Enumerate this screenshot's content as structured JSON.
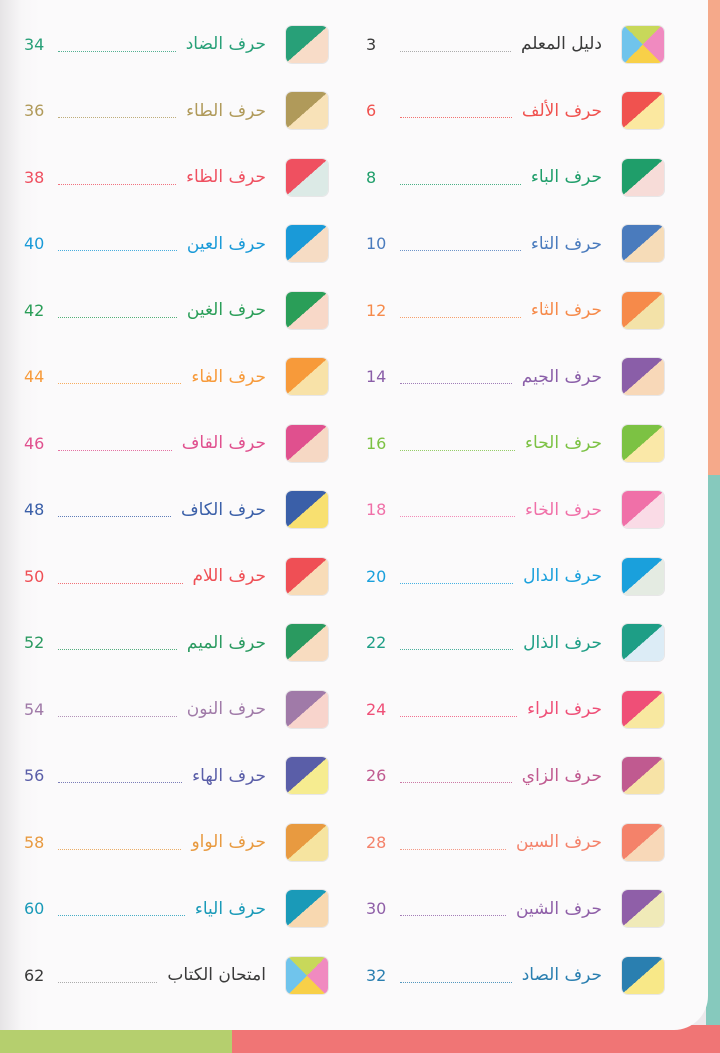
{
  "right_column": [
    {
      "label": "دليل المعلم",
      "page": "3",
      "color": "#3a3a3a",
      "icon": "quad",
      "light": ""
    },
    {
      "label": "حرف الألف",
      "page": "6",
      "color": "#f0524f",
      "light": "#fbe8a0"
    },
    {
      "label": "حرف الباء",
      "page": "8",
      "color": "#1f9e6a",
      "light": "#f7dcd8"
    },
    {
      "label": "حرف التاء",
      "page": "10",
      "color": "#4a7bbd",
      "light": "#f6dcb8"
    },
    {
      "label": "حرف الثاء",
      "page": "12",
      "color": "#f68a4a",
      "light": "#f3e2a8"
    },
    {
      "label": "حرف الجيم",
      "page": "14",
      "color": "#8a5ea8",
      "light": "#f8d8b8"
    },
    {
      "label": "حرف الحاء",
      "page": "16",
      "color": "#7cc243",
      "light": "#fae8a8"
    },
    {
      "label": "حرف الخاء",
      "page": "18",
      "color": "#f070a8",
      "light": "#fadbe6"
    },
    {
      "label": "حرف الدال",
      "page": "20",
      "color": "#1aa0dc",
      "light": "#e4ebe2"
    },
    {
      "label": "حرف الذال",
      "page": "22",
      "color": "#1e9e86",
      "light": "#dcecf6"
    },
    {
      "label": "حرف الراء",
      "page": "24",
      "color": "#ef4f77",
      "light": "#f8e8a0"
    },
    {
      "label": "حرف الزاي",
      "page": "26",
      "color": "#c05a90",
      "light": "#f7e3a6"
    },
    {
      "label": "حرف السين",
      "page": "28",
      "color": "#f4826a",
      "light": "#f8d8b8"
    },
    {
      "label": "حرف الشين",
      "page": "30",
      "color": "#8f5fa8",
      "light": "#f0eab8"
    },
    {
      "label": "حرف الصاد",
      "page": "32",
      "color": "#2a7fb0",
      "light": "#f8e888"
    }
  ],
  "left_column": [
    {
      "label": "حرف الضاد",
      "page": "34",
      "color": "#28a078",
      "light": "#f8dcc8"
    },
    {
      "label": "حرف الطاء",
      "page": "36",
      "color": "#b09a5a",
      "light": "#f8e2b8"
    },
    {
      "label": "حرف الظاء",
      "page": "38",
      "color": "#ef5060",
      "light": "#dceae6"
    },
    {
      "label": "حرف العين",
      "page": "40",
      "color": "#1a9ad8",
      "light": "#f6dcc4"
    },
    {
      "label": "حرف الغين",
      "page": "42",
      "color": "#2a9e58",
      "light": "#f8d8c8"
    },
    {
      "label": "حرف الفاء",
      "page": "44",
      "color": "#f79a3a",
      "light": "#f8e2a8"
    },
    {
      "label": "حرف القاف",
      "page": "46",
      "color": "#e0508e",
      "light": "#f6d8c4"
    },
    {
      "label": "حرف الكاف",
      "page": "48",
      "color": "#3a5fa8",
      "light": "#f8e070"
    },
    {
      "label": "حرف اللام",
      "page": "50",
      "color": "#ef4f55",
      "light": "#f8dcb8"
    },
    {
      "label": "حرف الميم",
      "page": "52",
      "color": "#2a9a60",
      "light": "#f8dcc0"
    },
    {
      "label": "حرف النون",
      "page": "54",
      "color": "#a07aa8",
      "light": "#f8d4cc"
    },
    {
      "label": "حرف الهاء",
      "page": "56",
      "color": "#5a5ea8",
      "light": "#f6ec90"
    },
    {
      "label": "حرف الواو",
      "page": "58",
      "color": "#e89a40",
      "light": "#f6e4a0"
    },
    {
      "label": "حرف الياء",
      "page": "60",
      "color": "#1a9ab8",
      "light": "#f8d8b0"
    },
    {
      "label": "امتحان الكتاب",
      "page": "62",
      "color": "#3a3a3a",
      "icon": "quad",
      "light": ""
    }
  ],
  "quad_icon_colors": {
    "top": "#c8d85a",
    "right": "#f08ac0",
    "bottom": "#f8d048",
    "left": "#70c4ec"
  },
  "edge_colors": {
    "strip_top": "#f5a98a",
    "strip_bottom": "#86c9bd",
    "bottom_left": "#b5cf6e",
    "bottom_right": "#f07575"
  }
}
